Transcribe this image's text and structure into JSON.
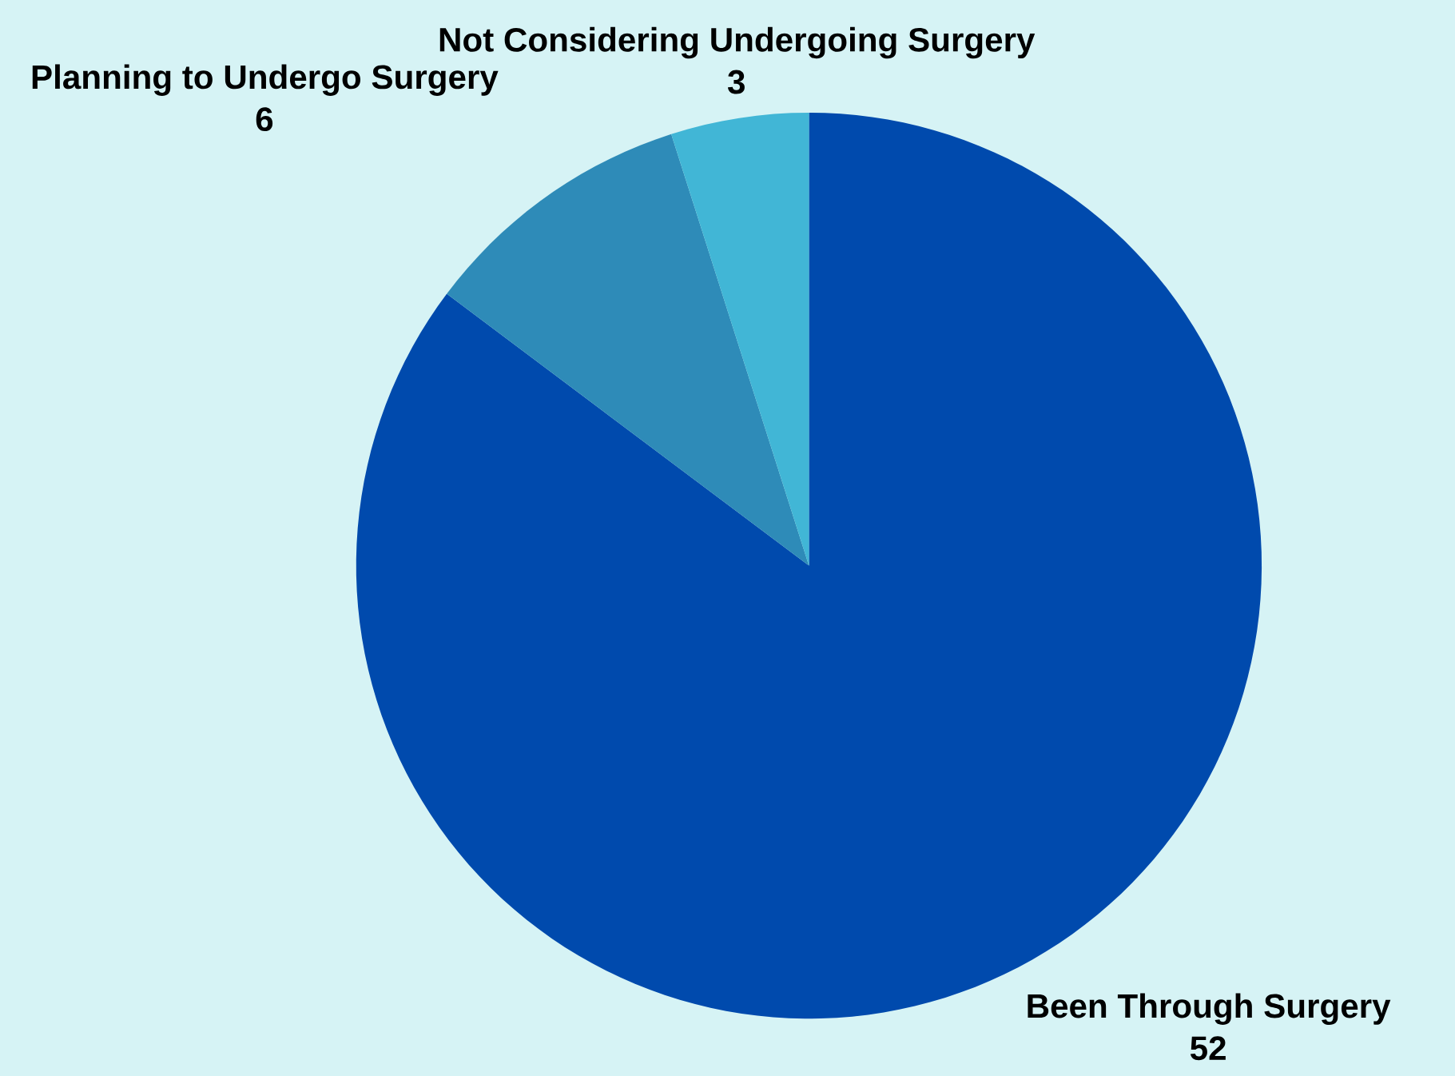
{
  "chart_data": {
    "type": "pie",
    "categories": [
      "Been Through Surgery",
      "Planning to Undergo Surgery",
      "Not Considering Undergoing Surgery"
    ],
    "values": [
      52,
      6,
      3
    ],
    "colors": [
      "#004aad",
      "#2e8bb8",
      "#41b6d6"
    ],
    "data_labels": true
  }
}
